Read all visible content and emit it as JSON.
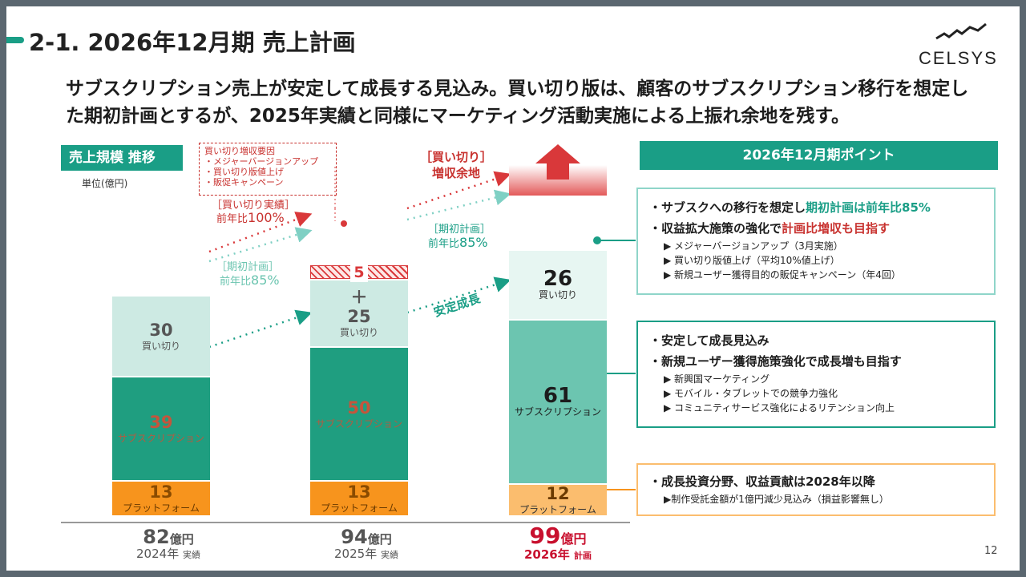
{
  "title": "2-1. 2026年12月期 売上計画",
  "logo": "CELSYS",
  "lead": [
    "サブスクリプション売上が安定して成長する見込み。買い切り版は、顧客のサブスクリプション移行を想定し",
    "た期初計画とするが、2025年実績と同様にマーケティング活動実施による上振れ余地を残す。"
  ],
  "chart_header": "売上規模 推移",
  "unit": "単位(億円)",
  "factors": {
    "title": "買い切り増収要因",
    "items": [
      "・メジャーバージョンアップ",
      "・買い切り版値上げ",
      "・販促キャンペーン"
    ]
  },
  "annotations": {
    "actual_label": "［買い切り実績］",
    "actual_yoy_prefix": "前年比",
    "actual_yoy_value": "100%",
    "plan_label_1": "［期初計画］",
    "plan_yoy_prefix_1": "前年比",
    "plan_yoy_value_1": "85%",
    "plan_label_2": "［期初計画］",
    "plan_yoy_prefix_2": "前年比",
    "plan_yoy_value_2": "85%",
    "upside_1": "［買い切り］",
    "upside_2": "増収余地",
    "stable_growth": "安定成長",
    "plus": "＋"
  },
  "colors": {
    "brand": "#1a9e86",
    "subscription": "#1f9e80",
    "subscription_plan": "#6cc5b0",
    "one_time": "#cdeae3",
    "platform": "#f7941d",
    "platform_plan": "#fbbd6e",
    "upside_red": "#d9383a"
  },
  "chart_data": {
    "type": "bar",
    "stacked": true,
    "categories": [
      "2024年",
      "2025年",
      "2026年"
    ],
    "category_notes": [
      "実績",
      "実績",
      "計画"
    ],
    "series": [
      {
        "name": "プラットフォーム",
        "values": [
          13,
          13,
          12
        ]
      },
      {
        "name": "サブスクリプション",
        "values": [
          39,
          50,
          61
        ]
      },
      {
        "name": "買い切り",
        "values": [
          30,
          25,
          26
        ]
      },
      {
        "name": "",
        "values": [
          0,
          5,
          0
        ]
      }
    ],
    "totals": [
      "82",
      "94",
      "99"
    ],
    "total_unit": "億円"
  },
  "points": {
    "header": "2026年12月期ポイント",
    "box1": {
      "line1_a": "・サブスクへの移行を想定し",
      "line1_b": "期初計画は前年比85%",
      "line2_a": "・収益拡大施策の強化で",
      "line2_b": "計画比増収も目指す",
      "subs": [
        "▶ メジャーバージョンアップ（3月実施）",
        "▶ 買い切り版値上げ（平均10%値上げ）",
        "▶ 新規ユーザー獲得目的の販促キャンペーン（年4回）"
      ]
    },
    "box2": {
      "line1": "・安定して成長見込み",
      "line2": "・新規ユーザー獲得施策強化で成長増も目指す",
      "subs": [
        "▶ 新興国マーケティング",
        "▶ モバイル・タブレットでの競争力強化",
        "▶ コミュニティサービス強化によるリテンション向上"
      ]
    },
    "box3": {
      "line1": "・成長投資分野、収益貢献は2028年以降",
      "subs": [
        "▶制作受託金額が1億円減少見込み（損益影響無し）"
      ]
    }
  },
  "page_number": "12"
}
